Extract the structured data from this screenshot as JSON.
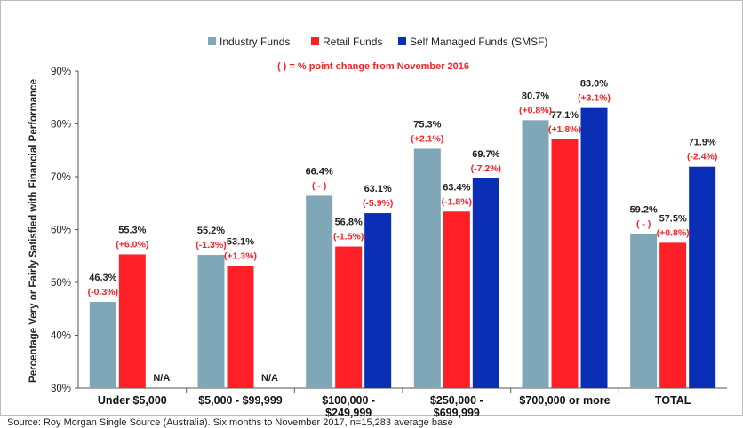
{
  "chart_data": {
    "type": "bar",
    "ylabel": "Percentage Very or Fairly Satisfied with Financial Performance",
    "ylim": [
      30,
      90
    ],
    "yticks": [
      "30%",
      "40%",
      "50%",
      "60%",
      "70%",
      "80%",
      "90%"
    ],
    "note": "( ) = % point change from November 2016",
    "grid": false,
    "legend_position": "top-center",
    "categories": [
      [
        "Under $5,000"
      ],
      [
        "$5,000 - $99,999"
      ],
      [
        "$100,000 -",
        "$249,999"
      ],
      [
        "$250,000 -",
        "$699,999"
      ],
      [
        "$700,000 or more"
      ],
      [
        "TOTAL"
      ]
    ],
    "series": [
      {
        "name": "Industry Funds",
        "color": "#7fa7b7",
        "values": [
          46.3,
          55.2,
          66.4,
          75.3,
          80.7,
          59.2
        ],
        "labels": [
          "46.3%",
          "55.2%",
          "66.4%",
          "75.3%",
          "80.7%",
          "59.2%"
        ],
        "changes": [
          "(-0.3%)",
          "(-1.3%)",
          "( - )",
          "(+2.1%)",
          "(+0.8%)",
          "( - )"
        ]
      },
      {
        "name": "Retail Funds",
        "color": "#ff1f26",
        "values": [
          55.3,
          53.1,
          56.8,
          63.4,
          77.1,
          57.5
        ],
        "labels": [
          "55.3%",
          "53.1%",
          "56.8%",
          "63.4%",
          "77.1%",
          "57.5%"
        ],
        "changes": [
          "(+6.0%)",
          "(+1.3%)",
          "(-1.5%)",
          "(-1.8%)",
          "(+1.8%)",
          "(+0.8%)"
        ]
      },
      {
        "name": "Self Managed Funds (SMSF)",
        "color": "#0a2fb6",
        "values": [
          null,
          null,
          63.1,
          69.7,
          83.0,
          71.9
        ],
        "labels": [
          "N/A",
          "N/A",
          "63.1%",
          "69.7%",
          "83.0%",
          "71.9%"
        ],
        "changes": [
          "",
          "",
          "(-5.9%)",
          "(-7.2%)",
          "(+3.1%)",
          "(-2.4%)"
        ]
      }
    ]
  },
  "footer": "Source: Roy Morgan Single Source (Australia). Six months to November 2017, n=15,283 average base"
}
